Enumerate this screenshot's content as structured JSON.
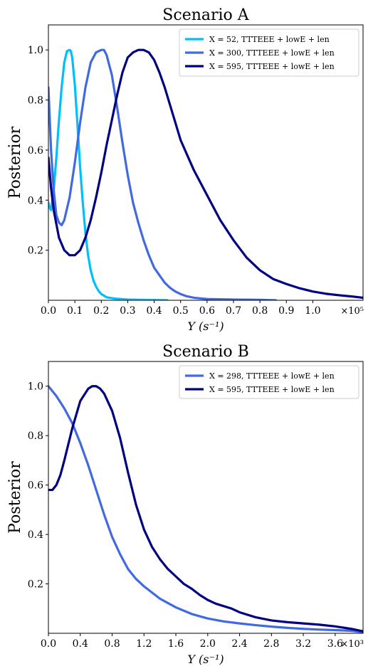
{
  "chart_data": [
    {
      "type": "line",
      "title": "Scenario A",
      "xlabel": "Y (s⁻¹)",
      "ylabel": "Posterior",
      "x_multiplier": "×10⁵",
      "xlim": [
        0,
        1.19
      ],
      "ylim": [
        0,
        1.1
      ],
      "xticks": [
        0.0,
        0.1,
        0.2,
        0.3,
        0.4,
        0.5,
        0.6,
        0.7,
        0.8,
        0.9,
        1.0
      ],
      "xtick_labels": [
        "0.0",
        "0.1",
        "0.2",
        "0.3",
        "0.4",
        "0.5",
        "0.6",
        "0.7",
        "0.8",
        "0.9",
        "1.0"
      ],
      "yticks": [
        0.2,
        0.4,
        0.6,
        0.8,
        1.0
      ],
      "ytick_labels": [
        "0.2",
        "0.4",
        "0.6",
        "0.8",
        "1.0"
      ],
      "grid": false,
      "legend_position": "top-right",
      "series": [
        {
          "name": "X = 52,   TTTEEE + lowE + len",
          "color": "#00bfff",
          "x": [
            0.0,
            0.005,
            0.01,
            0.02,
            0.03,
            0.04,
            0.05,
            0.06,
            0.07,
            0.08,
            0.085,
            0.09,
            0.1,
            0.11,
            0.12,
            0.13,
            0.14,
            0.15,
            0.16,
            0.17,
            0.18,
            0.19,
            0.2,
            0.22,
            0.25,
            0.3,
            0.35,
            0.4,
            0.45
          ],
          "y": [
            0.39,
            0.37,
            0.36,
            0.44,
            0.57,
            0.72,
            0.85,
            0.95,
            0.995,
            1.0,
            0.995,
            0.97,
            0.86,
            0.7,
            0.53,
            0.39,
            0.27,
            0.18,
            0.12,
            0.08,
            0.055,
            0.037,
            0.025,
            0.012,
            0.007,
            0.003,
            0.002,
            0.001,
            0.0
          ]
        },
        {
          "name": "X = 300,  TTTEEE + lowE + len",
          "color": "#4169e1",
          "x": [
            0.0,
            0.01,
            0.02,
            0.03,
            0.04,
            0.05,
            0.06,
            0.08,
            0.1,
            0.12,
            0.14,
            0.16,
            0.18,
            0.2,
            0.21,
            0.22,
            0.24,
            0.26,
            0.28,
            0.3,
            0.32,
            0.34,
            0.36,
            0.38,
            0.4,
            0.42,
            0.44,
            0.46,
            0.48,
            0.5,
            0.52,
            0.55,
            0.6,
            0.7,
            0.8,
            0.86
          ],
          "y": [
            0.85,
            0.6,
            0.44,
            0.34,
            0.31,
            0.3,
            0.32,
            0.41,
            0.55,
            0.71,
            0.85,
            0.95,
            0.99,
            1.0,
            1.0,
            0.98,
            0.9,
            0.77,
            0.63,
            0.5,
            0.39,
            0.31,
            0.24,
            0.18,
            0.13,
            0.1,
            0.07,
            0.05,
            0.035,
            0.025,
            0.017,
            0.01,
            0.005,
            0.003,
            0.002,
            0.0
          ]
        },
        {
          "name": "X = 595,  TTTEEE + lowE + len",
          "color": "#000080",
          "x": [
            0.0,
            0.01,
            0.02,
            0.04,
            0.06,
            0.08,
            0.1,
            0.12,
            0.14,
            0.16,
            0.18,
            0.2,
            0.22,
            0.24,
            0.26,
            0.28,
            0.3,
            0.32,
            0.34,
            0.36,
            0.38,
            0.4,
            0.42,
            0.44,
            0.46,
            0.48,
            0.5,
            0.55,
            0.6,
            0.65,
            0.7,
            0.75,
            0.8,
            0.85,
            0.9,
            0.95,
            1.0,
            1.05,
            1.1,
            1.15,
            1.19
          ],
          "y": [
            0.57,
            0.45,
            0.36,
            0.25,
            0.2,
            0.18,
            0.18,
            0.2,
            0.25,
            0.32,
            0.41,
            0.51,
            0.62,
            0.72,
            0.82,
            0.91,
            0.97,
            0.99,
            1.0,
            1.0,
            0.99,
            0.96,
            0.91,
            0.85,
            0.78,
            0.71,
            0.64,
            0.52,
            0.42,
            0.32,
            0.24,
            0.17,
            0.12,
            0.085,
            0.065,
            0.048,
            0.035,
            0.026,
            0.02,
            0.015,
            0.01
          ]
        }
      ]
    },
    {
      "type": "line",
      "title": "Scenario B",
      "xlabel": "Y (s⁻¹)",
      "ylabel": "Posterior",
      "x_multiplier": "×10³",
      "xlim": [
        0,
        3.95
      ],
      "ylim": [
        0,
        1.1
      ],
      "xticks": [
        0.0,
        0.4,
        0.8,
        1.2,
        1.6,
        2.0,
        2.4,
        2.8,
        3.2,
        3.6
      ],
      "xtick_labels": [
        "0.0",
        "0.4",
        "0.8",
        "1.2",
        "1.6",
        "2.0",
        "2.4",
        "2.8",
        "3.2",
        "3.6"
      ],
      "yticks": [
        0.2,
        0.4,
        0.6,
        0.8,
        1.0
      ],
      "ytick_labels": [
        "0.2",
        "0.4",
        "0.6",
        "0.8",
        "1.0"
      ],
      "grid": false,
      "legend_position": "top-right",
      "series": [
        {
          "name": "X = 298,  TTTEEE + lowE + len",
          "color": "#4169e1",
          "x": [
            0.0,
            0.1,
            0.2,
            0.3,
            0.4,
            0.5,
            0.6,
            0.7,
            0.8,
            0.9,
            1.0,
            1.1,
            1.2,
            1.4,
            1.6,
            1.8,
            2.0,
            2.2,
            2.4,
            2.6,
            2.8,
            3.0,
            3.2,
            3.4,
            3.6,
            3.8,
            3.95
          ],
          "y": [
            1.0,
            0.96,
            0.91,
            0.85,
            0.77,
            0.68,
            0.58,
            0.48,
            0.39,
            0.32,
            0.26,
            0.22,
            0.19,
            0.14,
            0.105,
            0.078,
            0.06,
            0.048,
            0.04,
            0.033,
            0.027,
            0.022,
            0.018,
            0.015,
            0.013,
            0.01,
            0.005
          ]
        },
        {
          "name": "X = 595,  TTTEEE + lowE + len",
          "color": "#000080",
          "x": [
            0.0,
            0.05,
            0.1,
            0.15,
            0.2,
            0.3,
            0.4,
            0.5,
            0.55,
            0.6,
            0.65,
            0.7,
            0.8,
            0.9,
            1.0,
            1.1,
            1.2,
            1.3,
            1.4,
            1.5,
            1.6,
            1.7,
            1.8,
            1.9,
            2.0,
            2.1,
            2.2,
            2.3,
            2.4,
            2.6,
            2.8,
            3.0,
            3.2,
            3.4,
            3.6,
            3.8,
            3.95
          ],
          "y": [
            0.58,
            0.58,
            0.6,
            0.64,
            0.7,
            0.83,
            0.94,
            0.99,
            1.0,
            1.0,
            0.99,
            0.97,
            0.9,
            0.79,
            0.65,
            0.52,
            0.42,
            0.35,
            0.3,
            0.26,
            0.23,
            0.2,
            0.18,
            0.155,
            0.135,
            0.12,
            0.11,
            0.1,
            0.085,
            0.065,
            0.052,
            0.045,
            0.04,
            0.035,
            0.028,
            0.018,
            0.008
          ]
        }
      ]
    }
  ]
}
